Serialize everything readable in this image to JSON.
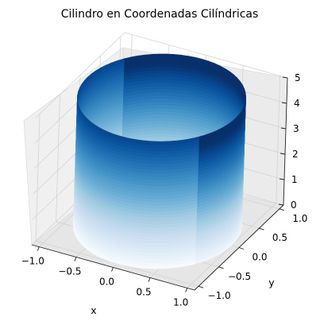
{
  "chart_data": {
    "type": "surface3d",
    "title": "Cilindro en Coordenadas Cilíndricas",
    "xlabel": "x",
    "ylabel": "y",
    "zlabel": "",
    "xlim": [
      -1.1,
      1.1
    ],
    "ylim": [
      -1.1,
      1.1
    ],
    "zlim": [
      0,
      5
    ],
    "x_ticks": [
      "−1.0",
      "−0.5",
      "0.0",
      "0.5",
      "1.0"
    ],
    "y_ticks": [
      "−1.0",
      "−0.5",
      "0.0",
      "0.5",
      "1.0"
    ],
    "z_ticks": [
      "0",
      "1",
      "2",
      "3",
      "4",
      "5"
    ],
    "surface": {
      "radius": 1.0,
      "z_min": 0,
      "z_max": 5,
      "colormap": "Blues",
      "color_by": "height"
    },
    "grid": true,
    "pane_color": "#f2f2f2"
  }
}
